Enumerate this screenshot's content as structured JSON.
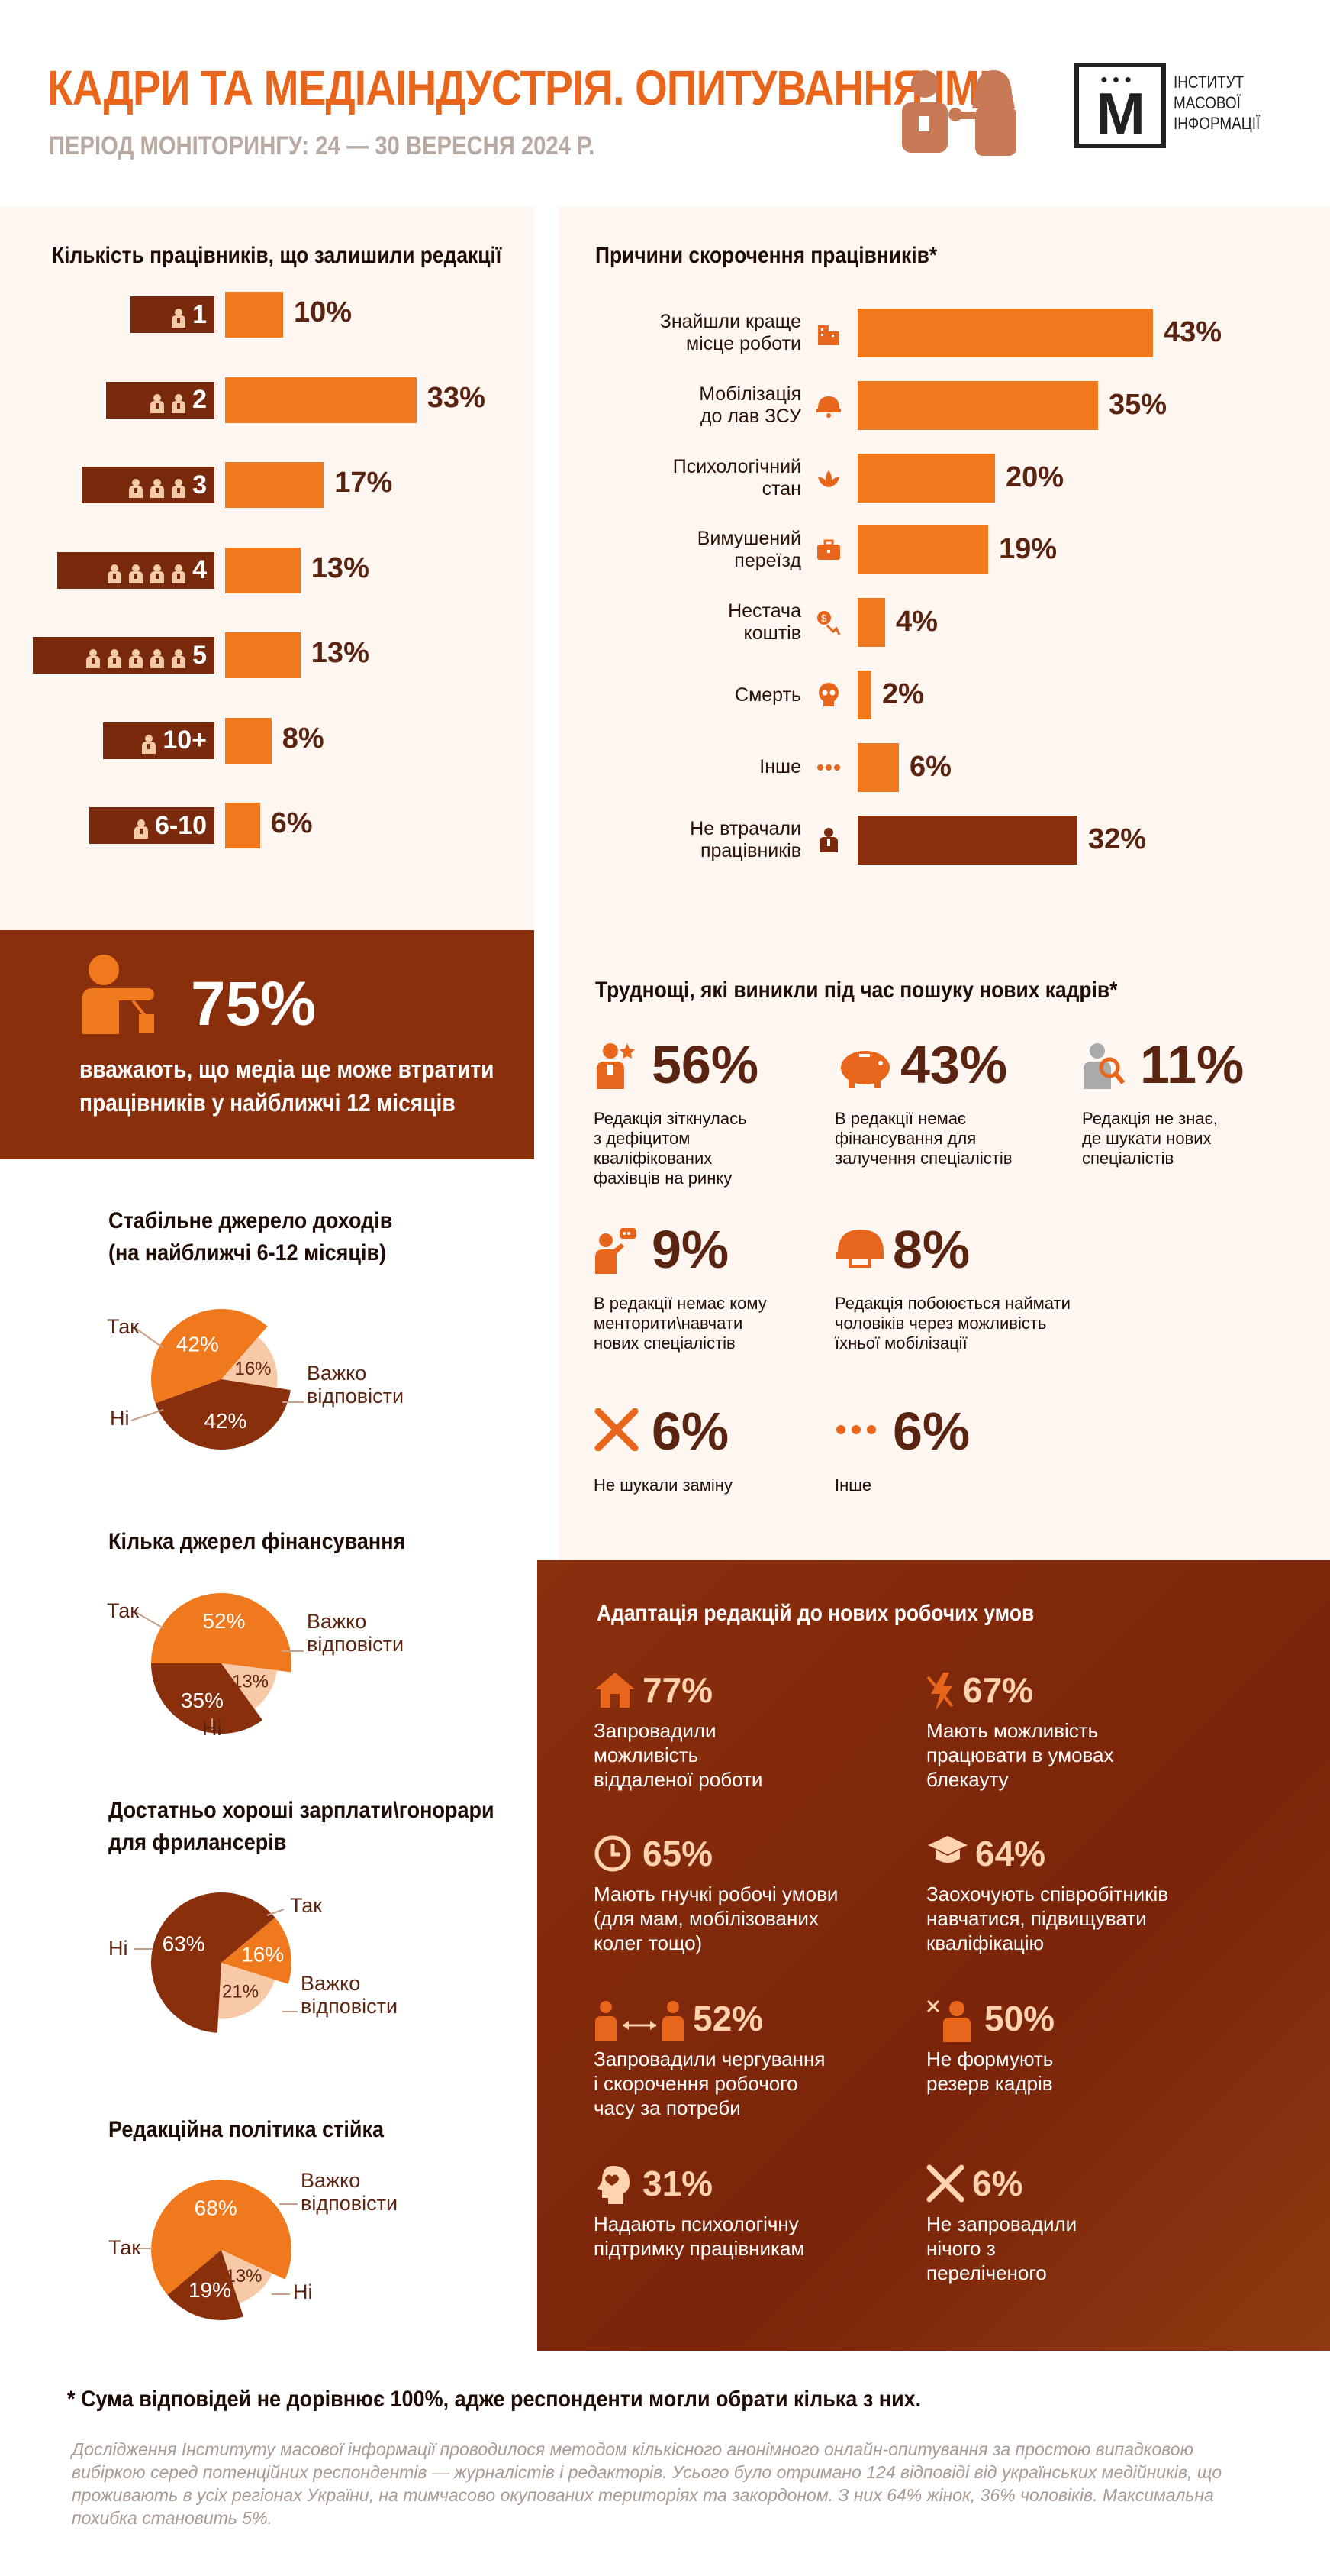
{
  "header": {
    "title": "КАДРИ ТА МЕДІАІНДУСТРІЯ. ОПИТУВАННЯ ІМІ",
    "period": "ПЕРІОД МОНІТОРИНГУ: 24 — 30 ВЕРЕСНЯ 2024 Р.",
    "logo_letter": "М",
    "logo_text": [
      "ІНСТИТУТ",
      "МАСОВОЇ",
      "ІНФОРМАЦІЇ"
    ]
  },
  "colors": {
    "accent": "#f0781d",
    "dark": "#8a2f0c",
    "light": "#f7c9a6",
    "panel": "#fdf6f1"
  },
  "chart_data": [
    {
      "type": "bar",
      "title": "Кількість працівників, що залишили редакції",
      "categories": [
        "1",
        "2",
        "3",
        "4",
        "5",
        "10+",
        "6-10"
      ],
      "values": [
        10,
        33,
        17,
        13,
        13,
        8,
        6
      ],
      "value_labels": [
        "10%",
        "33%",
        "17%",
        "13%",
        "13%",
        "8%",
        "6%"
      ],
      "icon_counts": [
        1,
        2,
        3,
        4,
        5,
        1,
        1
      ]
    },
    {
      "type": "bar",
      "title": "Причини скорочення працівників*",
      "categories": [
        [
          "Знайшли краще",
          "місце роботи"
        ],
        [
          "Мобілізація",
          "до лав ЗСУ"
        ],
        [
          "Психологічний",
          "стан"
        ],
        [
          "Вимушений",
          "переїзд"
        ],
        [
          "Нестача",
          "коштів"
        ],
        [
          "Смерть"
        ],
        [
          "Інше"
        ],
        [
          "Не втрачали",
          "працівників"
        ]
      ],
      "values": [
        43,
        35,
        20,
        19,
        4,
        2,
        6,
        32
      ],
      "value_labels": [
        "43%",
        "35%",
        "20%",
        "19%",
        "4%",
        "2%",
        "6%",
        "32%"
      ],
      "icons": [
        "building-icon",
        "helmet-icon",
        "lotus-icon",
        "briefcase-icon",
        "money-down-icon",
        "skull-icon",
        "dots-icon",
        "person-icon"
      ]
    },
    {
      "type": "pie",
      "title": [
        "Стабільне джерело доходів",
        "(на найближчі 6-12 місяців)"
      ],
      "slices": [
        {
          "name": "Так",
          "value": 42,
          "label": "42%",
          "color": "#f0781d"
        },
        {
          "name": "Важко відповісти",
          "value": 16,
          "label": "16%",
          "color": "#f7c9a6"
        },
        {
          "name": "Ні",
          "value": 42,
          "label": "42%",
          "color": "#8a2f0c"
        }
      ]
    },
    {
      "type": "pie",
      "title": [
        "Кілька джерел фінансування"
      ],
      "slices": [
        {
          "name": "Так",
          "value": 52,
          "label": "52%",
          "color": "#f0781d"
        },
        {
          "name": "Важко відповісти",
          "value": 13,
          "label": "13%",
          "color": "#f7c9a6"
        },
        {
          "name": "Ні",
          "value": 35,
          "label": "35%",
          "color": "#8a2f0c"
        }
      ]
    },
    {
      "type": "pie",
      "title": [
        "Достатньо хороші зарплати\\гонорари",
        "для фрилансерів"
      ],
      "slices": [
        {
          "name": "Так",
          "value": 16,
          "label": "16%",
          "color": "#f0781d"
        },
        {
          "name": "Важко відповісти",
          "value": 21,
          "label": "21%",
          "color": "#f7c9a6"
        },
        {
          "name": "Ні",
          "value": 63,
          "label": "63%",
          "color": "#8a2f0c"
        }
      ]
    },
    {
      "type": "pie",
      "title": [
        "Редакційна політика стійка"
      ],
      "slices": [
        {
          "name": "Так",
          "value": 68,
          "label": "68%",
          "color": "#f0781d"
        },
        {
          "name": "Важко відповісти",
          "value": 13,
          "label": "13%",
          "color": "#f7c9a6"
        },
        {
          "name": "Ні",
          "value": 19,
          "label": "19%",
          "color": "#8a2f0c"
        }
      ]
    }
  ],
  "highlight": {
    "pct": "75%",
    "text": [
      "вважають, що медіа ще може втратити",
      "працівників у найближчі 12 місяців"
    ]
  },
  "pies_labels": {
    "yes": "Так",
    "no": "Ні",
    "hard": [
      "Важко",
      "відповісти"
    ]
  },
  "difficulties": {
    "title": "Труднощі, які виникли під час пошуку нових кадрів*",
    "items": [
      {
        "pct": "56%",
        "text": [
          "Редакція зіткнулась",
          "з дефіцитом",
          "кваліфікованих",
          "фахівців на ринку"
        ],
        "icon": "person-star-icon"
      },
      {
        "pct": "43%",
        "text": [
          "В редакції немає",
          "фінансування для",
          "залучення спеціалістів"
        ],
        "icon": "piggy-bank-icon"
      },
      {
        "pct": "11%",
        "text": [
          "Редакція не знає,",
          "де шукати нових",
          "спеціалістів"
        ],
        "icon": "person-search-icon"
      },
      {
        "pct": "9%",
        "text": [
          "В редакції немає кому",
          "менторити\\навчати",
          "нових спеціалістів"
        ],
        "icon": "mentor-icon"
      },
      {
        "pct": "8%",
        "text": [
          "Редакція побоюється наймати",
          "чоловіків через можливість",
          "їхньої мобілізації"
        ],
        "icon": "helmet-icon"
      },
      {
        "pct": "6%",
        "text": [
          "Не шукали заміну"
        ],
        "icon": "cross-icon"
      },
      {
        "pct": "6%",
        "text": [
          "Інше"
        ],
        "icon": "dots-icon"
      }
    ]
  },
  "adaptation": {
    "title": "Адаптація редакцій до нових робочих умов",
    "items": [
      {
        "pct": "77%",
        "text": [
          "Запровадили",
          "можливість",
          "віддаленої роботи"
        ],
        "icon": "home-icon"
      },
      {
        "pct": "67%",
        "text": [
          "Мають можливість",
          "працювати в умовах",
          "блекауту"
        ],
        "icon": "power-off-icon"
      },
      {
        "pct": "65%",
        "text": [
          "Мають гнучкі робочі умови",
          "(для мам, мобілізованих",
          "колег тощо)"
        ],
        "icon": "clock-icon"
      },
      {
        "pct": "64%",
        "text": [
          "Заохочують співробітників",
          "навчатися, підвищувати",
          "кваліфікацію"
        ],
        "icon": "graduation-cap-icon"
      },
      {
        "pct": "52%",
        "text": [
          "Запровадили чергування",
          "і скорочення робочого",
          "часу за потреби"
        ],
        "icon": "shift-swap-icon"
      },
      {
        "pct": "50%",
        "text": [
          "Не формують",
          "резерв кадрів"
        ],
        "icon": "person-x-icon"
      },
      {
        "pct": "31%",
        "text": [
          "Надають психологічну",
          "підтримку працівникам"
        ],
        "icon": "head-heart-icon"
      },
      {
        "pct": "6%",
        "text": [
          "Не запровадили",
          "нічого з",
          "переліченого"
        ],
        "icon": "cross-icon"
      }
    ]
  },
  "footnote": "* Сума відповідей не дорівнює 100%, адже респонденти могли обрати кілька з них.",
  "methodology": "Дослідження Інституту масової інформації  проводилося методом кількісного анонімного онлайн-опитування за простою випадковою вибіркою серед потенційних респондентів — журналістів і редакторів. Усього було отримано 124 відповіді від українських медійників, що проживають в усіх регіонах України, на тимчасово окупованих територіях та закордоном. З них 64% жінок, 36% чоловіків. Максимальна похибка становить 5%."
}
